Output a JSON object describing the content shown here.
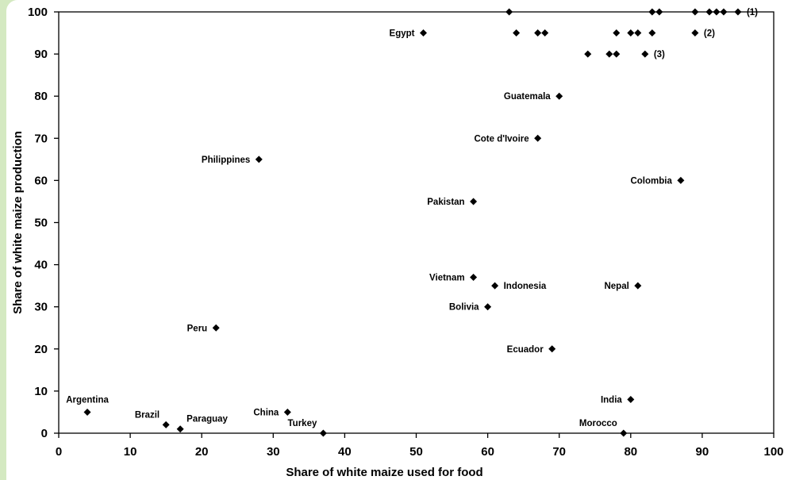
{
  "chart_data": {
    "type": "scatter",
    "xlabel": "Share of white maize used for food",
    "ylabel": "Share of white maize production",
    "xlim": [
      0,
      100
    ],
    "ylim": [
      0,
      100
    ],
    "xticks": [
      0,
      10,
      20,
      30,
      40,
      50,
      60,
      70,
      80,
      90,
      100
    ],
    "yticks": [
      0,
      10,
      20,
      30,
      40,
      50,
      60,
      70,
      80,
      90,
      100
    ],
    "grid": false,
    "marker_color": "#000000",
    "points": [
      {
        "x": 51,
        "y": 95,
        "label": "Egypt",
        "label_side": "left"
      },
      {
        "x": 70,
        "y": 80,
        "label": "Guatemala",
        "label_side": "left"
      },
      {
        "x": 67,
        "y": 70,
        "label": "Cote d'Ivoire",
        "label_side": "left"
      },
      {
        "x": 28,
        "y": 65,
        "label": "Philippines",
        "label_side": "left"
      },
      {
        "x": 87,
        "y": 60,
        "label": "Colombia",
        "label_side": "left"
      },
      {
        "x": 58,
        "y": 55,
        "label": "Pakistan",
        "label_side": "left"
      },
      {
        "x": 58,
        "y": 37,
        "label": "Vietnam",
        "label_side": "left"
      },
      {
        "x": 61,
        "y": 35,
        "label": "Indonesia",
        "label_side": "right"
      },
      {
        "x": 81,
        "y": 35,
        "label": "Nepal",
        "label_side": "left"
      },
      {
        "x": 60,
        "y": 30,
        "label": "Bolivia",
        "label_side": "left"
      },
      {
        "x": 22,
        "y": 25,
        "label": "Peru",
        "label_side": "left"
      },
      {
        "x": 69,
        "y": 20,
        "label": "Ecuador",
        "label_side": "left"
      },
      {
        "x": 80,
        "y": 8,
        "label": "India",
        "label_side": "left"
      },
      {
        "x": 4,
        "y": 5,
        "label": "Argentina",
        "label_side": "above"
      },
      {
        "x": 32,
        "y": 5,
        "label": "China",
        "label_side": "left"
      },
      {
        "x": 15,
        "y": 2,
        "label": "Brazil",
        "label_side": "aboveleft"
      },
      {
        "x": 17,
        "y": 1,
        "label": "Paraguay",
        "label_side": "aboveright"
      },
      {
        "x": 37,
        "y": 0,
        "label": "Turkey",
        "label_side": "aboveleft"
      },
      {
        "x": 79,
        "y": 0,
        "label": "Morocco",
        "label_side": "aboveleft"
      },
      {
        "x": 63,
        "y": 100,
        "label": ""
      },
      {
        "x": 83,
        "y": 100,
        "label": ""
      },
      {
        "x": 84,
        "y": 100,
        "label": ""
      },
      {
        "x": 89,
        "y": 100,
        "label": ""
      },
      {
        "x": 91,
        "y": 100,
        "label": ""
      },
      {
        "x": 92,
        "y": 100,
        "label": ""
      },
      {
        "x": 93,
        "y": 100,
        "label": ""
      },
      {
        "x": 95,
        "y": 100,
        "label": "(1)",
        "label_side": "right"
      },
      {
        "x": 64,
        "y": 95,
        "label": ""
      },
      {
        "x": 67,
        "y": 95,
        "label": ""
      },
      {
        "x": 68,
        "y": 95,
        "label": ""
      },
      {
        "x": 78,
        "y": 95,
        "label": ""
      },
      {
        "x": 80,
        "y": 95,
        "label": ""
      },
      {
        "x": 81,
        "y": 95,
        "label": ""
      },
      {
        "x": 83,
        "y": 95,
        "label": ""
      },
      {
        "x": 89,
        "y": 95,
        "label": "(2)",
        "label_side": "right"
      },
      {
        "x": 74,
        "y": 90,
        "label": ""
      },
      {
        "x": 77,
        "y": 90,
        "label": ""
      },
      {
        "x": 78,
        "y": 90,
        "label": ""
      },
      {
        "x": 82,
        "y": 90,
        "label": "(3)",
        "label_side": "right"
      }
    ]
  }
}
